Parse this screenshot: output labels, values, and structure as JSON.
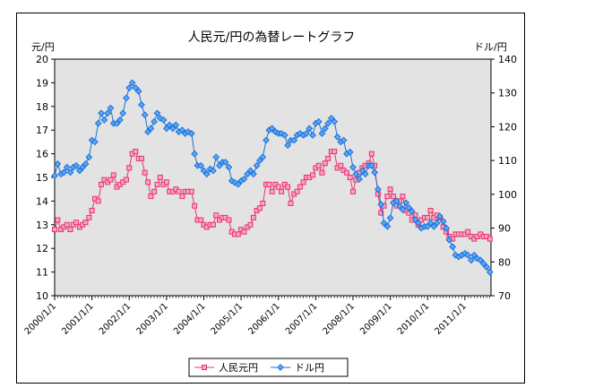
{
  "chart_data": {
    "type": "line",
    "title": "人民元/円の為替レートグラフ",
    "y_left_label": "元/円",
    "y_right_label": "ドル/円",
    "y_left_lim": [
      10,
      20
    ],
    "y_left_ticks": [
      10,
      11,
      12,
      13,
      14,
      15,
      16,
      17,
      18,
      19,
      20
    ],
    "y_right_lim": [
      70,
      140
    ],
    "y_right_ticks": [
      70,
      80,
      90,
      100,
      110,
      120,
      130,
      140
    ],
    "x_ticks": [
      "2000/1/1",
      "2001/1/1",
      "2002/1/1",
      "2003/1/1",
      "2004/1/1",
      "2005/1/1",
      "2006/1/1",
      "2007/1/1",
      "2008/1/1",
      "2009/1/1",
      "2010/1/1",
      "2011/1/1"
    ],
    "x_start_year": 2000,
    "x_end_year": 2011.7,
    "legend": {
      "placement": "bottom"
    },
    "colors": {
      "plot_bg": "#e3e3e3",
      "cny": "#e8336e",
      "usd": "#1c6fd6"
    },
    "series": [
      {
        "name": "人民元円",
        "axis": "left",
        "color": "#e8336e",
        "marker": "square",
        "x": [
          2000.0,
          2000.08,
          2000.17,
          2000.25,
          2000.33,
          2000.42,
          2000.5,
          2000.58,
          2000.67,
          2000.75,
          2000.83,
          2000.92,
          2001.0,
          2001.08,
          2001.17,
          2001.25,
          2001.33,
          2001.42,
          2001.5,
          2001.58,
          2001.67,
          2001.75,
          2001.83,
          2001.92,
          2002.0,
          2002.08,
          2002.17,
          2002.25,
          2002.33,
          2002.42,
          2002.5,
          2002.58,
          2002.67,
          2002.75,
          2002.83,
          2002.92,
          2003.0,
          2003.08,
          2003.17,
          2003.25,
          2003.33,
          2003.42,
          2003.5,
          2003.58,
          2003.67,
          2003.75,
          2003.83,
          2003.92,
          2004.0,
          2004.08,
          2004.17,
          2004.25,
          2004.33,
          2004.42,
          2004.5,
          2004.58,
          2004.67,
          2004.75,
          2004.83,
          2004.92,
          2005.0,
          2005.08,
          2005.17,
          2005.25,
          2005.33,
          2005.42,
          2005.5,
          2005.58,
          2005.67,
          2005.75,
          2005.83,
          2005.92,
          2006.0,
          2006.08,
          2006.17,
          2006.25,
          2006.33,
          2006.42,
          2006.5,
          2006.58,
          2006.67,
          2006.75,
          2006.83,
          2006.92,
          2007.0,
          2007.08,
          2007.17,
          2007.25,
          2007.33,
          2007.42,
          2007.5,
          2007.58,
          2007.67,
          2007.75,
          2007.83,
          2007.92,
          2008.0,
          2008.08,
          2008.17,
          2008.25,
          2008.33,
          2008.42,
          2008.5,
          2008.58,
          2008.67,
          2008.75,
          2008.83,
          2008.92,
          2009.0,
          2009.08,
          2009.17,
          2009.25,
          2009.33,
          2009.42,
          2009.5,
          2009.58,
          2009.67,
          2009.75,
          2009.83,
          2009.92,
          2010.0,
          2010.08,
          2010.17,
          2010.25,
          2010.33,
          2010.42,
          2010.5,
          2010.58,
          2010.67,
          2010.75,
          2010.83,
          2010.92,
          2011.0,
          2011.08,
          2011.17,
          2011.25,
          2011.33,
          2011.42,
          2011.5,
          2011.58,
          2011.67
        ],
        "y": [
          12.8,
          13.2,
          12.8,
          12.9,
          13.0,
          12.8,
          13.0,
          13.1,
          12.9,
          13.0,
          13.1,
          13.3,
          13.6,
          14.1,
          14.0,
          14.7,
          14.9,
          14.8,
          14.9,
          15.1,
          14.6,
          14.7,
          14.8,
          14.9,
          15.4,
          16.0,
          16.1,
          15.8,
          15.8,
          15.2,
          14.8,
          14.2,
          14.4,
          14.7,
          15.0,
          14.7,
          14.8,
          14.4,
          14.4,
          14.5,
          14.4,
          14.2,
          14.4,
          14.4,
          14.4,
          13.8,
          13.2,
          13.2,
          13.0,
          12.9,
          13.0,
          13.0,
          13.4,
          13.2,
          13.3,
          13.3,
          13.2,
          12.7,
          12.6,
          12.6,
          12.8,
          12.7,
          12.9,
          13.0,
          13.3,
          13.6,
          13.7,
          13.9,
          14.7,
          14.7,
          14.4,
          14.7,
          14.6,
          14.4,
          14.7,
          14.6,
          13.9,
          14.3,
          14.4,
          14.6,
          14.8,
          15.0,
          15.0,
          15.1,
          15.4,
          15.5,
          15.2,
          15.6,
          15.8,
          16.1,
          16.1,
          15.4,
          15.5,
          15.3,
          15.2,
          15.0,
          14.4,
          14.9,
          15.2,
          15.4,
          15.5,
          15.6,
          16.0,
          15.5,
          14.3,
          13.5,
          13.8,
          14.2,
          14.5,
          14.2,
          13.8,
          14.0,
          14.2,
          13.6,
          13.5,
          13.2,
          13.4,
          13.0,
          13.2,
          13.3,
          13.3,
          13.6,
          13.3,
          13.4,
          13.3,
          12.9,
          12.7,
          12.5,
          12.4,
          12.6,
          12.6,
          12.6,
          12.6,
          12.7,
          12.5,
          12.4,
          12.5,
          12.6,
          12.5,
          12.5,
          12.4
        ]
      },
      {
        "name": "ドル円",
        "axis": "right",
        "color": "#1c6fd6",
        "marker": "diamond",
        "x": [
          2000.0,
          2000.08,
          2000.17,
          2000.25,
          2000.33,
          2000.42,
          2000.5,
          2000.58,
          2000.67,
          2000.75,
          2000.83,
          2000.92,
          2001.0,
          2001.08,
          2001.17,
          2001.25,
          2001.33,
          2001.42,
          2001.5,
          2001.58,
          2001.67,
          2001.75,
          2001.83,
          2001.92,
          2002.0,
          2002.08,
          2002.17,
          2002.25,
          2002.33,
          2002.42,
          2002.5,
          2002.58,
          2002.67,
          2002.75,
          2002.83,
          2002.92,
          2003.0,
          2003.08,
          2003.17,
          2003.25,
          2003.33,
          2003.42,
          2003.5,
          2003.58,
          2003.67,
          2003.75,
          2003.83,
          2003.92,
          2004.0,
          2004.08,
          2004.17,
          2004.25,
          2004.33,
          2004.42,
          2004.5,
          2004.58,
          2004.67,
          2004.75,
          2004.83,
          2004.92,
          2005.0,
          2005.08,
          2005.17,
          2005.25,
          2005.33,
          2005.42,
          2005.5,
          2005.58,
          2005.67,
          2005.75,
          2005.83,
          2005.92,
          2006.0,
          2006.08,
          2006.17,
          2006.25,
          2006.33,
          2006.42,
          2006.5,
          2006.58,
          2006.67,
          2006.75,
          2006.83,
          2006.92,
          2007.0,
          2007.08,
          2007.17,
          2007.25,
          2007.33,
          2007.42,
          2007.5,
          2007.58,
          2007.67,
          2007.75,
          2007.83,
          2007.92,
          2008.0,
          2008.08,
          2008.17,
          2008.25,
          2008.33,
          2008.42,
          2008.5,
          2008.58,
          2008.67,
          2008.75,
          2008.83,
          2008.92,
          2009.0,
          2009.08,
          2009.17,
          2009.25,
          2009.33,
          2009.42,
          2009.5,
          2009.58,
          2009.67,
          2009.75,
          2009.83,
          2009.92,
          2010.0,
          2010.08,
          2010.17,
          2010.25,
          2010.33,
          2010.42,
          2010.5,
          2010.58,
          2010.67,
          2010.75,
          2010.83,
          2010.92,
          2011.0,
          2011.08,
          2011.17,
          2011.25,
          2011.33,
          2011.42,
          2011.5,
          2011.58,
          2011.67
        ],
        "y": [
          105.5,
          109.0,
          106.0,
          106.5,
          108.0,
          106.5,
          108.0,
          108.5,
          107.0,
          108.0,
          109.0,
          111.0,
          116.0,
          115.5,
          121.0,
          124.0,
          122.0,
          124.0,
          125.5,
          121.0,
          121.0,
          122.0,
          124.0,
          128.5,
          131.5,
          133.0,
          131.5,
          130.5,
          126.5,
          123.5,
          118.5,
          119.5,
          121.5,
          124.0,
          122.5,
          122.0,
          119.5,
          120.5,
          119.5,
          120.5,
          118.5,
          119.0,
          118.0,
          118.5,
          118.0,
          112.0,
          108.5,
          108.5,
          107.0,
          106.0,
          107.5,
          107.0,
          111.0,
          108.5,
          109.5,
          109.5,
          108.0,
          104.0,
          103.5,
          103.0,
          104.0,
          104.5,
          106.0,
          107.0,
          106.0,
          108.5,
          110.0,
          111.0,
          116.0,
          119.0,
          119.5,
          118.5,
          118.0,
          118.0,
          117.5,
          114.5,
          116.0,
          116.0,
          117.5,
          118.0,
          117.5,
          118.0,
          119.5,
          117.5,
          121.0,
          121.5,
          118.0,
          119.5,
          121.0,
          122.5,
          121.5,
          117.0,
          115.5,
          116.0,
          112.0,
          112.5,
          108.0,
          106.0,
          104.5,
          107.0,
          106.0,
          108.5,
          108.5,
          106.5,
          101.5,
          97.0,
          91.5,
          90.5,
          93.0,
          97.5,
          98.0,
          96.5,
          95.5,
          97.5,
          96.0,
          95.0,
          92.5,
          91.5,
          90.0,
          90.5,
          90.5,
          91.5,
          90.5,
          91.5,
          93.5,
          92.0,
          90.0,
          86.5,
          84.5,
          82.0,
          81.5,
          82.0,
          82.5,
          82.0,
          80.5,
          82.0,
          81.0,
          80.5,
          79.5,
          78.5,
          77.0
        ]
      }
    ]
  }
}
